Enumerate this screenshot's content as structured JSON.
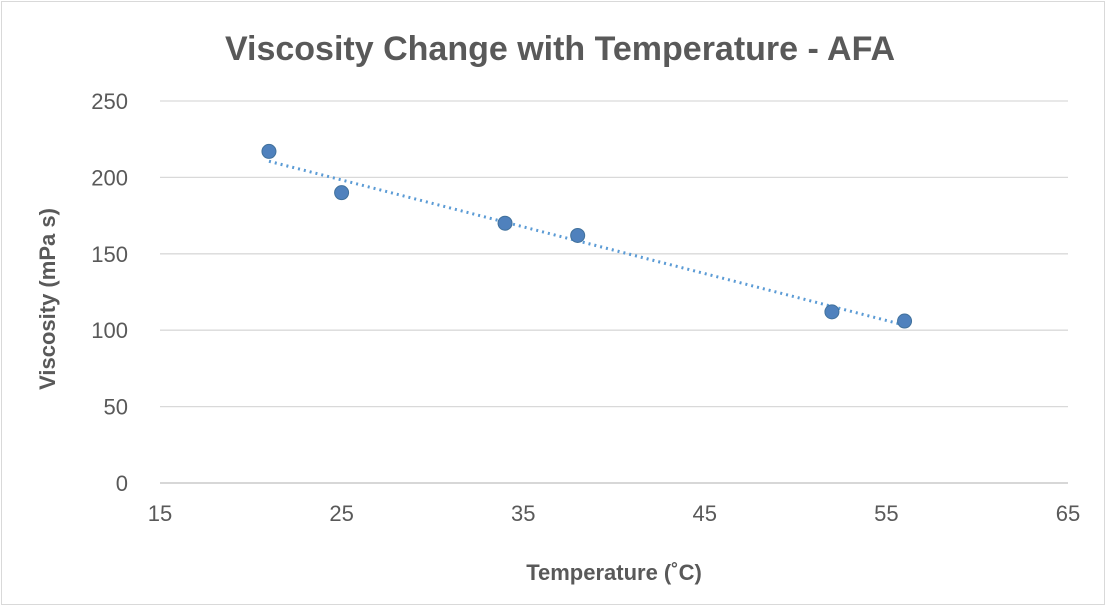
{
  "chart_data": {
    "type": "scatter",
    "title": "Viscosity Change with Temperature - AFA",
    "xlabel": "Temperature (˚C)",
    "ylabel": "Viscosity (mPa s)",
    "xlim": [
      15,
      65
    ],
    "ylim": [
      0,
      250
    ],
    "xticks": [
      15,
      25,
      35,
      45,
      55,
      65
    ],
    "yticks": [
      0,
      50,
      100,
      150,
      200,
      250
    ],
    "grid": "horizontal",
    "trendline": "linear",
    "series": [
      {
        "points": [
          {
            "x": 21,
            "y": 217
          },
          {
            "x": 25,
            "y": 190
          },
          {
            "x": 34,
            "y": 170
          },
          {
            "x": 38,
            "y": 162
          },
          {
            "x": 52,
            "y": 112
          },
          {
            "x": 56,
            "y": 106
          }
        ]
      }
    ],
    "colors": {
      "marker": "#4f81bd",
      "trendline": "#5b9bd5",
      "text": "#595959",
      "grid": "#d9d9d9"
    }
  }
}
